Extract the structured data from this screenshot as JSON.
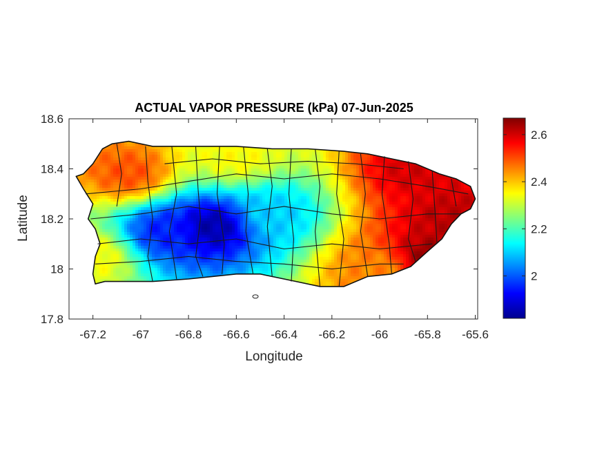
{
  "chart_data": {
    "type": "heatmap",
    "title": "ACTUAL VAPOR PRESSURE (kPa) 07-Jun-2025",
    "xlabel": "Longitude",
    "ylabel": "Latitude",
    "xlim": [
      -67.3,
      -65.59
    ],
    "ylim": [
      17.8,
      18.6
    ],
    "x_ticks": [
      "-67.2",
      "-67",
      "-66.8",
      "-66.6",
      "-66.4",
      "-66.2",
      "-66",
      "-65.8",
      "-65.6"
    ],
    "x_tick_values": [
      -67.2,
      -67.0,
      -66.8,
      -66.6,
      -66.4,
      -66.2,
      -66.0,
      -65.8,
      -65.6
    ],
    "y_ticks": [
      "18.6",
      "18.4",
      "18.2",
      "18",
      "17.8"
    ],
    "y_tick_values": [
      18.6,
      18.4,
      18.2,
      18.0,
      17.8
    ],
    "grid": false,
    "colormap": "jet",
    "colorbar": {
      "range": [
        1.82,
        2.67
      ],
      "ticks": [
        "2.6",
        "2.4",
        "2.2",
        "2"
      ],
      "tick_values": [
        2.6,
        2.4,
        2.2,
        2.0
      ]
    },
    "region": "Puerto Rico (municipality boundaries)",
    "field_hotspots": [
      {
        "lon": -66.7,
        "lat": 18.17,
        "value": 1.85
      },
      {
        "lon": -66.9,
        "lat": 18.15,
        "value": 1.95
      },
      {
        "lon": -66.45,
        "lat": 18.22,
        "value": 2.1
      },
      {
        "lon": -67.05,
        "lat": 18.38,
        "value": 2.5
      },
      {
        "lon": -65.8,
        "lat": 18.05,
        "value": 2.65
      },
      {
        "lon": -65.7,
        "lat": 18.2,
        "value": 2.62
      },
      {
        "lon": -65.85,
        "lat": 18.4,
        "value": 2.6
      },
      {
        "lon": -66.0,
        "lat": 18.0,
        "value": 2.45
      },
      {
        "lon": -67.2,
        "lat": 18.05,
        "value": 2.35
      },
      {
        "lon": -66.6,
        "lat": 18.45,
        "value": 2.35
      }
    ],
    "field_base_value": 2.3
  }
}
